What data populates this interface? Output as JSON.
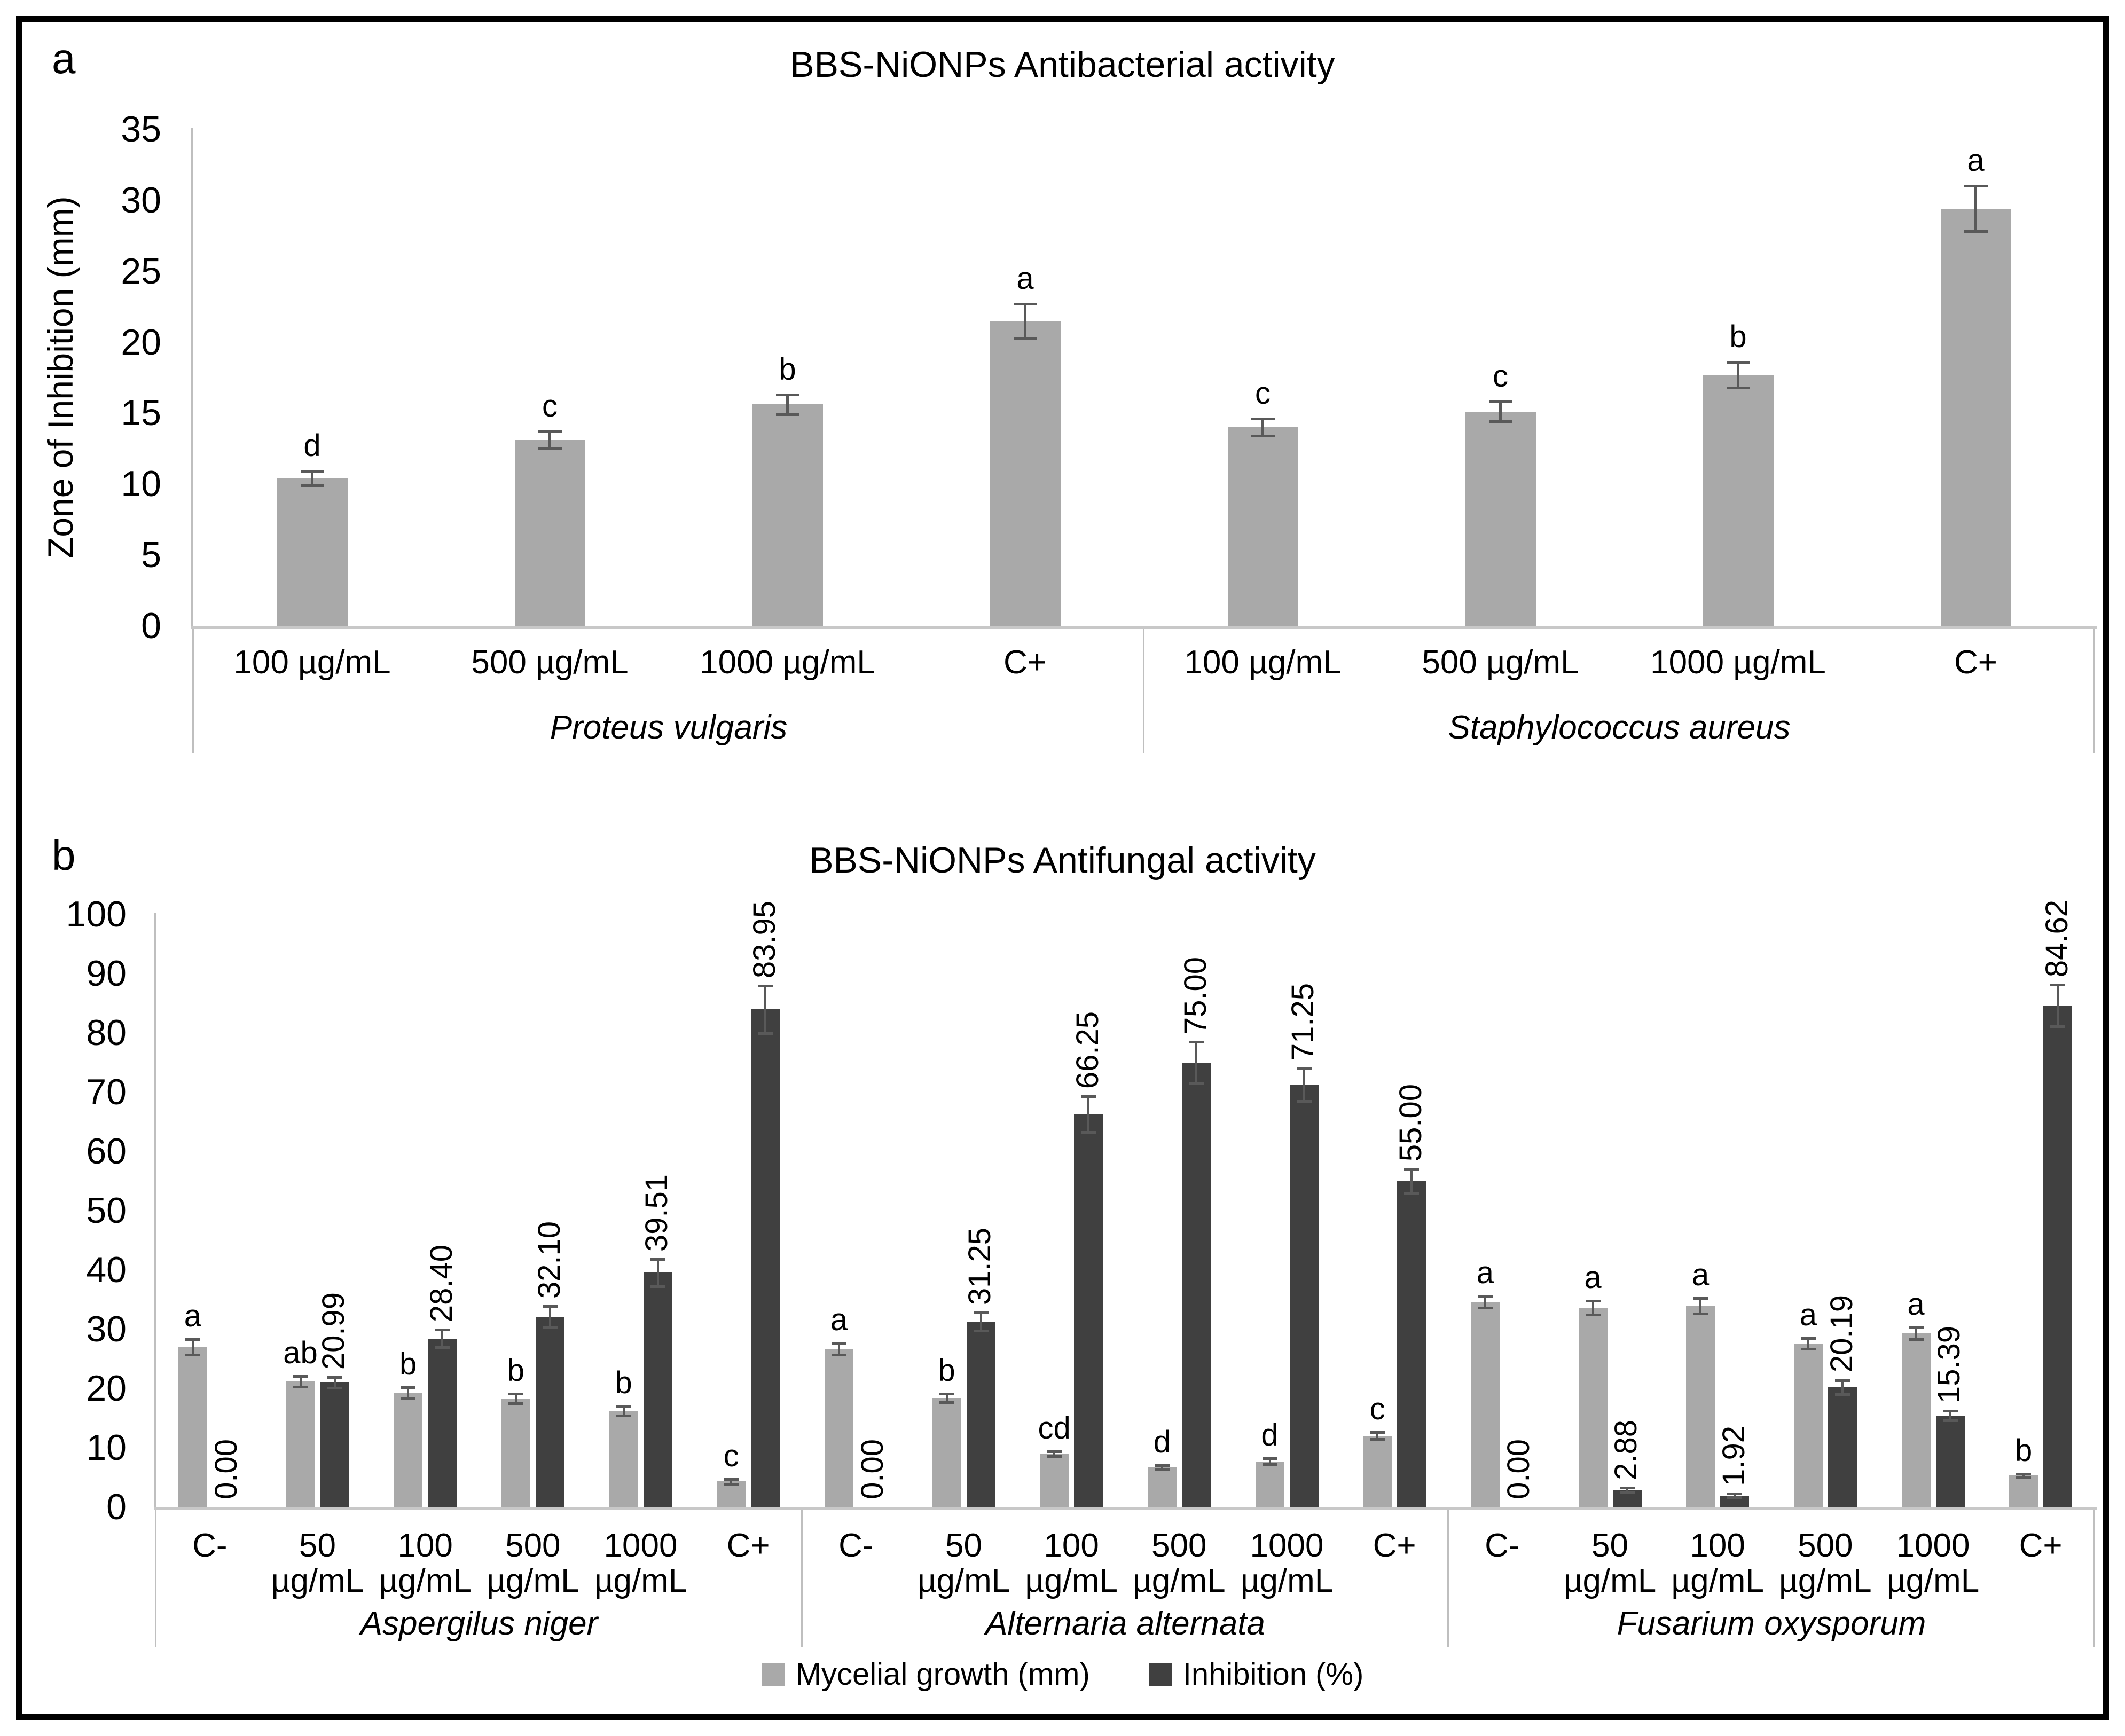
{
  "colors": {
    "bar_light": "#a9a9a9",
    "bar_dark": "#404040",
    "error_bar": "#595959",
    "axis_line": "#bfbfbf",
    "baseline": "#c8c8c8",
    "text": "#000000",
    "background": "#ffffff",
    "border": "#000000"
  },
  "legend": {
    "items": [
      {
        "label": "Mycelial growth (mm)",
        "color_key": "bar_light"
      },
      {
        "label": "Inhibition (%)",
        "color_key": "bar_dark"
      }
    ]
  },
  "chart_data": [
    {
      "id": "antibacterial",
      "type": "bar",
      "panel_letter": "a",
      "title": "BBS-NiONPs Antibacterial activity",
      "ylabel": "Zone of Inhibition (mm)",
      "ylim": [
        0,
        35
      ],
      "yticks": [
        0,
        5,
        10,
        15,
        20,
        25,
        30,
        35
      ],
      "grid": false,
      "legend_position": "none",
      "groups": [
        {
          "label": "Proteus vulgaris",
          "categories": [
            {
              "label": "100 µg/mL",
              "sublabel": ""
            },
            {
              "label": "500 µg/mL",
              "sublabel": ""
            },
            {
              "label": "1000 µg/mL",
              "sublabel": ""
            },
            {
              "label": "C+",
              "sublabel": ""
            }
          ],
          "series": [
            {
              "name": "Zone of Inhibition (mm)",
              "color_key": "bar_light",
              "values": [
                10.4,
                13.1,
                15.6,
                21.5
              ],
              "errors": [
                0.5,
                0.6,
                0.7,
                1.2
              ],
              "sig_letters": [
                "d",
                "c",
                "b",
                "a"
              ]
            }
          ]
        },
        {
          "label": "Staphylococcus aureus",
          "categories": [
            {
              "label": "100 µg/mL",
              "sublabel": ""
            },
            {
              "label": "500 µg/mL",
              "sublabel": ""
            },
            {
              "label": "1000 µg/mL",
              "sublabel": ""
            },
            {
              "label": "C+",
              "sublabel": ""
            }
          ],
          "series": [
            {
              "name": "Zone of Inhibition (mm)",
              "color_key": "bar_light",
              "values": [
                14.0,
                15.1,
                17.7,
                29.4
              ],
              "errors": [
                0.6,
                0.7,
                0.9,
                1.6
              ],
              "sig_letters": [
                "c",
                "c",
                "b",
                "a"
              ]
            }
          ]
        }
      ]
    },
    {
      "id": "antifungal",
      "type": "bar",
      "panel_letter": "b",
      "title": "BBS-NiONPs Antifungal activity",
      "ylabel": "",
      "ylim": [
        0,
        100
      ],
      "yticks": [
        0,
        10,
        20,
        30,
        40,
        50,
        60,
        70,
        80,
        90,
        100
      ],
      "grid": false,
      "legend_position": "bottom",
      "groups": [
        {
          "label": "Aspergilus niger",
          "categories": [
            {
              "label": "C-",
              "sublabel": ""
            },
            {
              "label": "50",
              "sublabel": "µg/mL"
            },
            {
              "label": "100",
              "sublabel": "µg/mL"
            },
            {
              "label": "500",
              "sublabel": "µg/mL"
            },
            {
              "label": "1000",
              "sublabel": "µg/mL"
            },
            {
              "label": "C+",
              "sublabel": ""
            }
          ],
          "series": [
            {
              "name": "Mycelial growth (mm)",
              "color_key": "bar_light",
              "values": [
                27.0,
                21.2,
                19.3,
                18.3,
                16.2,
                4.3
              ],
              "errors": [
                1.3,
                0.9,
                0.9,
                0.8,
                0.8,
                0.4
              ],
              "sig_letters": [
                "a",
                "ab",
                "b",
                "b",
                "b",
                "c"
              ]
            },
            {
              "name": "Inhibition (%)",
              "color_key": "bar_dark",
              "values": [
                0,
                20.99,
                28.4,
                32.1,
                39.51,
                83.95
              ],
              "errors": [
                0,
                0.9,
                1.5,
                1.8,
                2.3,
                4.0
              ],
              "value_labels": [
                "0.00",
                "20.99",
                "28.40",
                "32.10",
                "39.51",
                "83.95"
              ]
            }
          ]
        },
        {
          "label": "Alternaria alternata",
          "categories": [
            {
              "label": "C-",
              "sublabel": ""
            },
            {
              "label": "50",
              "sublabel": "µg/mL"
            },
            {
              "label": "100",
              "sublabel": "µg/mL"
            },
            {
              "label": "500",
              "sublabel": "µg/mL"
            },
            {
              "label": "1000",
              "sublabel": "µg/mL"
            },
            {
              "label": "C+",
              "sublabel": ""
            }
          ],
          "series": [
            {
              "name": "Mycelial growth (mm)",
              "color_key": "bar_light",
              "values": [
                26.7,
                18.4,
                9.0,
                6.7,
                7.7,
                12.0
              ],
              "errors": [
                1.0,
                0.7,
                0.4,
                0.3,
                0.5,
                0.6
              ],
              "sig_letters": [
                "a",
                "b",
                "cd",
                "d",
                "d",
                "c"
              ]
            },
            {
              "name": "Inhibition (%)",
              "color_key": "bar_dark",
              "values": [
                0,
                31.25,
                66.25,
                75.0,
                71.25,
                55.0
              ],
              "errors": [
                0,
                1.5,
                3.0,
                3.5,
                2.8,
                2.0
              ],
              "value_labels": [
                "0.00",
                "31.25",
                "66.25",
                "75.00",
                "71.25",
                "55.00"
              ]
            }
          ]
        },
        {
          "label": "Fusarium oxysporum",
          "categories": [
            {
              "label": "C-",
              "sublabel": ""
            },
            {
              "label": "50",
              "sublabel": "µg/mL"
            },
            {
              "label": "100",
              "sublabel": "µg/mL"
            },
            {
              "label": "500",
              "sublabel": "µg/mL"
            },
            {
              "label": "1000",
              "sublabel": "µg/mL"
            },
            {
              "label": "C+",
              "sublabel": ""
            }
          ],
          "series": [
            {
              "name": "Mycelial growth (mm)",
              "color_key": "bar_light",
              "values": [
                34.6,
                33.6,
                33.9,
                27.6,
                29.3,
                5.3
              ],
              "errors": [
                1.0,
                1.2,
                1.3,
                0.9,
                1.0,
                0.3
              ],
              "sig_letters": [
                "a",
                "a",
                "a",
                "a",
                "a",
                "b"
              ]
            },
            {
              "name": "Inhibition (%)",
              "color_key": "bar_dark",
              "values": [
                0,
                2.88,
                1.92,
                20.19,
                15.39,
                84.62
              ],
              "errors": [
                0,
                0.4,
                0.3,
                1.2,
                0.8,
                3.5
              ],
              "value_labels": [
                "0.00",
                "2.88",
                "1.92",
                "20.19",
                "15.39",
                "84.62"
              ]
            }
          ]
        }
      ]
    }
  ]
}
